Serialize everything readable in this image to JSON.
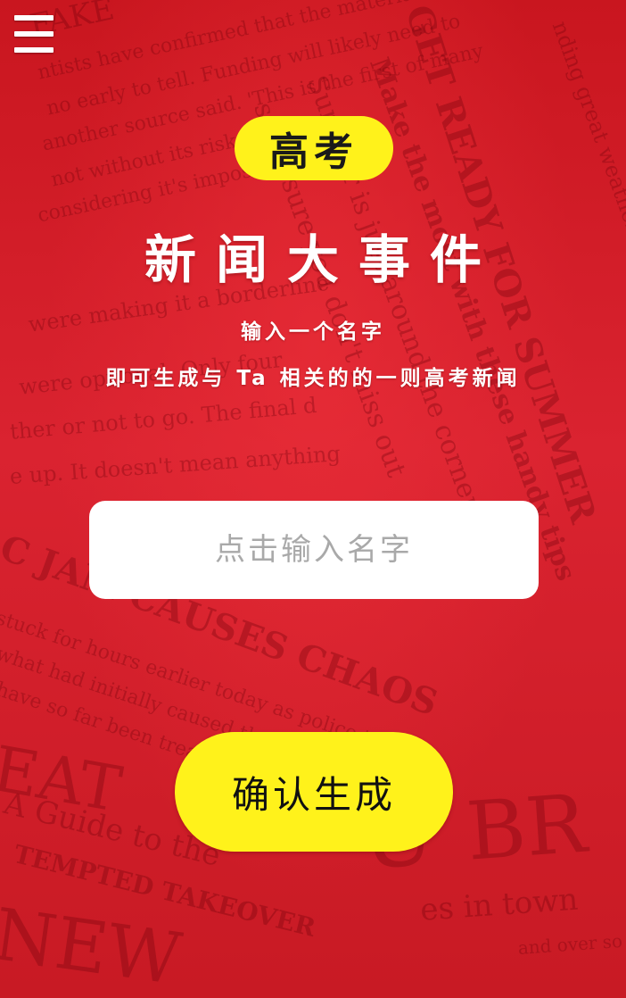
{
  "header": {
    "menu_icon": "hamburger-menu-icon"
  },
  "hero": {
    "badge": "高考",
    "title": "新闻大事件",
    "subtitle_line1": "输入一个名字",
    "subtitle_line2": "即可生成与 Ta 相关的的一则高考新闻"
  },
  "form": {
    "name_placeholder": "点击输入名字",
    "name_value": "",
    "confirm_label": "确认生成"
  },
  "colors": {
    "background": "#d41f2c",
    "accent_yellow": "#fff21b",
    "text_light": "#ffffff",
    "placeholder": "#a9a9a9"
  }
}
